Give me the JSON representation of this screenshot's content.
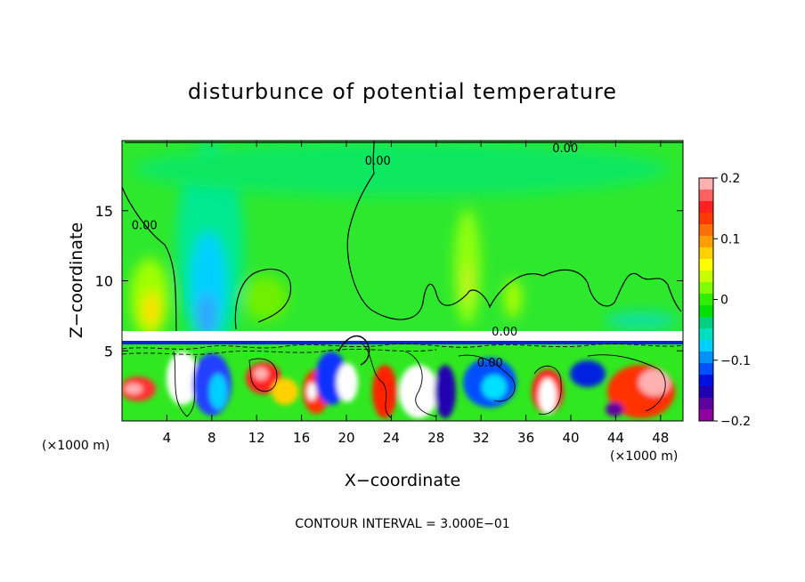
{
  "chart_data": {
    "type": "heatmap",
    "title": "disturbunce of potential temperature",
    "xlabel": "X−coordinate",
    "ylabel": "Z−coordinate",
    "x_unit_left": "(×1000 m)",
    "x_unit_right": "(×1000 m)",
    "footer": "CONTOUR INTERVAL = 3.000E−01",
    "xlim": [
      0,
      50
    ],
    "ylim": [
      0,
      20
    ],
    "x_ticks": [
      4,
      8,
      12,
      16,
      20,
      24,
      28,
      32,
      36,
      40,
      44,
      48
    ],
    "x_tick_labels": [
      "4",
      "8",
      "12",
      "16",
      "20",
      "24",
      "28",
      "32",
      "36",
      "40",
      "44",
      "48"
    ],
    "y_ticks": [
      5,
      10,
      15
    ],
    "y_tick_labels": [
      "5",
      "10",
      "15"
    ],
    "colorbar": {
      "range": [
        -0.2,
        0.2
      ],
      "tick_values": [
        0.2,
        0.1,
        0,
        -0.1,
        -0.2
      ],
      "tick_labels": [
        "0.2",
        "0.1",
        "0",
        "−0.1",
        "−0.2"
      ],
      "colors": [
        "#ffb0b0",
        "#ff6060",
        "#ff2020",
        "#ff3a00",
        "#ff7000",
        "#ffa000",
        "#ffd000",
        "#ffff00",
        "#c8ff00",
        "#80ff00",
        "#30f000",
        "#00e000",
        "#00d080",
        "#00e0c0",
        "#00d0ff",
        "#0090ff",
        "#0050ff",
        "#0010e0",
        "#2000b0",
        "#6000a0",
        "#9000a0"
      ]
    },
    "contour_labels": [
      {
        "text": "0.00",
        "x": 2,
        "z": 14
      },
      {
        "text": "0.00",
        "x": 22.8,
        "z": 18.6
      },
      {
        "text": "0.00",
        "x": 39.5,
        "z": 19.5
      },
      {
        "text": "0.00",
        "x": 34.1,
        "z": 6.4
      },
      {
        "text": "0.00",
        "x": 32.8,
        "z": 4.2
      }
    ],
    "regions": [
      {
        "name": "upper-field",
        "x": [
          0,
          50
        ],
        "z": [
          5.5,
          20
        ],
        "value": 0.0
      },
      {
        "name": "cold-column",
        "x": [
          6,
          10
        ],
        "z": [
          5.5,
          19
        ],
        "value": -0.08
      },
      {
        "name": "warm-patch-left",
        "x": [
          1.5,
          4
        ],
        "z": [
          6,
          9.5
        ],
        "value": 0.09
      },
      {
        "name": "warm-patch-30",
        "x": [
          29,
          32
        ],
        "z": [
          6,
          14
        ],
        "value": 0.05
      },
      {
        "name": "inversion-layer",
        "x": [
          0,
          50
        ],
        "z": [
          5.3,
          5.8
        ],
        "value": -0.2
      },
      {
        "name": "lower-turbulent-layer",
        "x": [
          0,
          50
        ],
        "z": [
          0,
          5.3
        ],
        "value": 0.0
      }
    ]
  }
}
